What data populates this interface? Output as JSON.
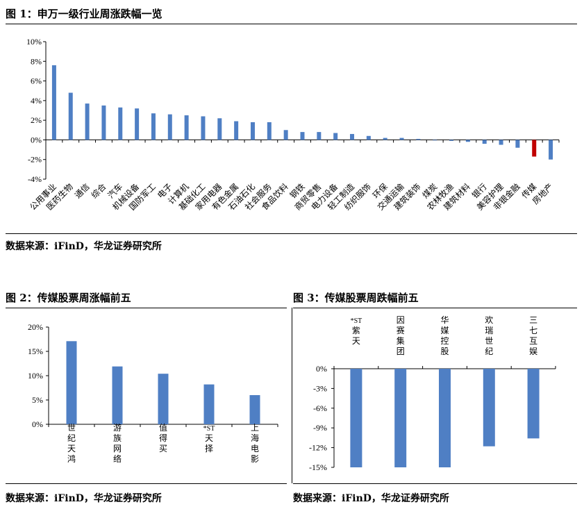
{
  "figures": [
    {
      "title": "图 1：申万一级行业周涨跌幅一览",
      "source": "数据来源：iFinD，华龙证券研究所",
      "chart_data": {
        "type": "bar",
        "ylim": [
          -0.04,
          0.1
        ],
        "yticks": [
          -0.04,
          -0.02,
          0,
          0.02,
          0.04,
          0.06,
          0.08,
          0.1
        ],
        "ytick_labels": [
          "-4%",
          "-2%",
          "0%",
          "2%",
          "4%",
          "6%",
          "8%",
          "10%"
        ],
        "categories": [
          "公用事业",
          "医药生物",
          "通信",
          "综合",
          "汽车",
          "机械设备",
          "国防军工",
          "电子",
          "计算机",
          "基础化工",
          "家用电器",
          "有色金属",
          "石油石化",
          "社会服务",
          "食品饮料",
          "钢铁",
          "商贸零售",
          "电力设备",
          "轻工制造",
          "纺织服饰",
          "环保",
          "交通运输",
          "建筑装饰",
          "煤炭",
          "农林牧渔",
          "建筑材料",
          "银行",
          "美容护理",
          "非银金融",
          "传媒",
          "房地产"
        ],
        "values": [
          0.076,
          0.048,
          0.037,
          0.035,
          0.033,
          0.032,
          0.027,
          0.026,
          0.025,
          0.024,
          0.022,
          0.019,
          0.018,
          0.018,
          0.01,
          0.008,
          0.008,
          0.007,
          0.006,
          0.004,
          0.002,
          0.002,
          0.001,
          -0.0005,
          -0.001,
          -0.002,
          -0.004,
          -0.005,
          -0.008,
          -0.017,
          -0.02
        ],
        "bar_color": "#4f7fc4",
        "highlight_color": "#c00000",
        "highlight_category": "传媒"
      }
    },
    {
      "title": "图 2：传媒股票周涨幅前五",
      "source": "数据来源：iFinD，华龙证券研究所",
      "chart_data": {
        "type": "bar",
        "ylim": [
          0,
          0.2
        ],
        "yticks": [
          0,
          0.05,
          0.1,
          0.15,
          0.2
        ],
        "ytick_labels": [
          "0%",
          "5%",
          "10%",
          "15%",
          "20%"
        ],
        "categories": [
          "世纪天鸿",
          "游族网络",
          "值得买",
          "*ST天择",
          "上海电影"
        ],
        "values": [
          0.171,
          0.119,
          0.104,
          0.082,
          0.06
        ],
        "bar_color": "#4f7fc4"
      }
    },
    {
      "title": "图 3：传媒股票周跌幅前五",
      "source": "数据来源：iFinD，华龙证券研究所",
      "chart_data": {
        "type": "bar",
        "ylim": [
          -0.15,
          0
        ],
        "yticks": [
          -0.15,
          -0.12,
          -0.09,
          -0.06,
          -0.03,
          0
        ],
        "ytick_labels": [
          "-15%",
          "-12%",
          "-9%",
          "-6%",
          "-3%",
          "0%"
        ],
        "categories": [
          "*ST紫天",
          "因赛集团",
          "华媒控股",
          "欢瑞世纪",
          "三七互娱"
        ],
        "values": [
          -0.15,
          -0.15,
          -0.15,
          -0.118,
          -0.106
        ],
        "bar_color": "#4f7fc4"
      }
    }
  ]
}
